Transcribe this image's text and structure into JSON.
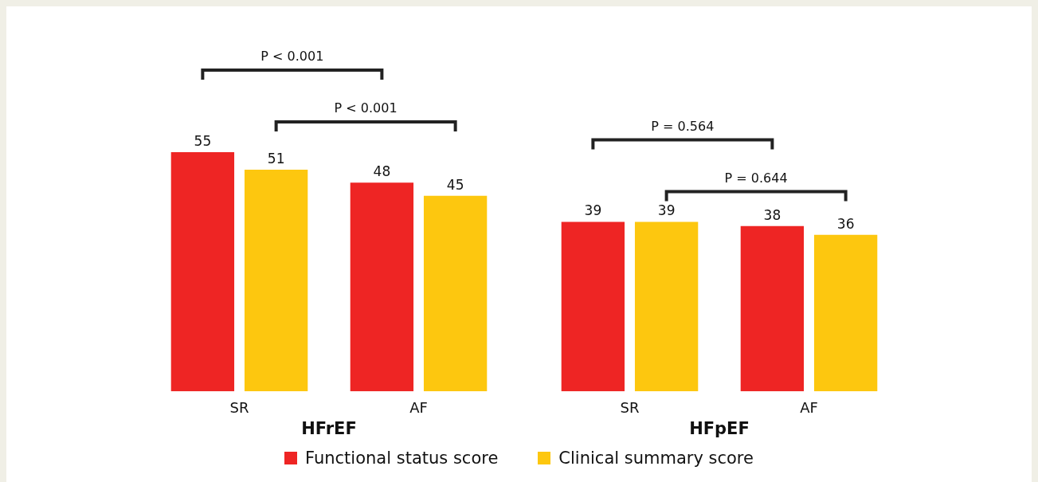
{
  "chart_data": [
    {
      "type": "bar",
      "categories": [
        "SR",
        "AF"
      ],
      "xlabel": "HFrEF",
      "data_labels": true,
      "legend": "bottom",
      "series": [
        {
          "name": "Functional status score",
          "color": "#ee2524",
          "values": [
            55,
            48
          ]
        },
        {
          "name": "Clinical summary score",
          "color": "#fdc70f",
          "values": [
            51,
            45
          ]
        }
      ],
      "annotations": [
        "P < 0.001",
        "P < 0.001"
      ]
    },
    {
      "type": "bar",
      "categories": [
        "SR",
        "AF"
      ],
      "xlabel": "HFpEF",
      "data_labels": true,
      "legend": "bottom",
      "series": [
        {
          "name": "Functional status score",
          "color": "#ee2524",
          "values": [
            39,
            38
          ]
        },
        {
          "name": "Clinical summary score",
          "color": "#fdc70f",
          "values": [
            39,
            36
          ]
        }
      ],
      "annotations": [
        "P = 0.564",
        "P = 0.644"
      ]
    }
  ]
}
